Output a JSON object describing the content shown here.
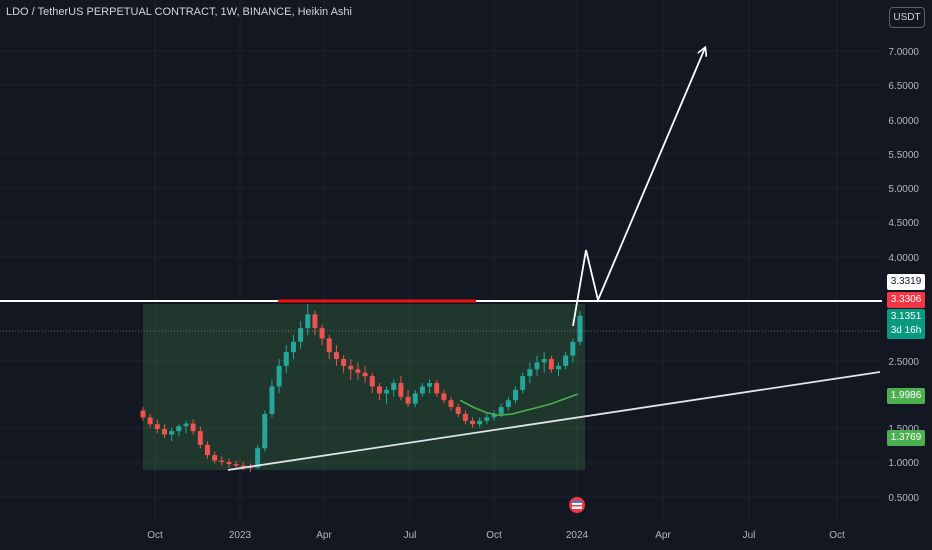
{
  "header": {
    "title": "LDO / TetherUS PERPETUAL CONTRACT, 1W, BINANCE, Heikin Ashi",
    "currency_button": "USDT"
  },
  "price_badges": [
    {
      "label": "3.3319",
      "bg": "#ffffff",
      "fg": "#131722"
    },
    {
      "label": "3.3306",
      "bg": "#f23645",
      "fg": "#ffffff"
    },
    {
      "label": "3.1351",
      "sub": "3d 16h",
      "bg": "#089981",
      "fg": "#ffffff"
    },
    {
      "label": "1.9986",
      "bg": "#4caf50",
      "fg": "#ffffff"
    },
    {
      "label": "1.3769",
      "bg": "#4caf50",
      "fg": "#ffffff"
    }
  ],
  "colors": {
    "up": "#26a69a",
    "down": "#ef5350",
    "zone": "#4caf50",
    "resistance": "#ffffff",
    "highlight": "#f21010",
    "ma": "#4caf50"
  },
  "chart_data": {
    "type": "candlestick",
    "y_ticks": [
      "0.5000",
      "1.0000",
      "1.5000",
      "2.5000",
      "4.0000",
      "4.5000",
      "5.0000",
      "5.5000",
      "6.0000",
      "6.5000",
      "7.0000"
    ],
    "x_ticks": [
      "Oct",
      "2023",
      "Apr",
      "Jul",
      "Oct",
      "2024",
      "Apr",
      "Jul",
      "Oct"
    ],
    "ohlc": [
      [
        1.75,
        1.8,
        1.6,
        1.65
      ],
      [
        1.65,
        1.7,
        1.5,
        1.55
      ],
      [
        1.55,
        1.62,
        1.42,
        1.48
      ],
      [
        1.48,
        1.55,
        1.35,
        1.4
      ],
      [
        1.4,
        1.5,
        1.3,
        1.45
      ],
      [
        1.45,
        1.55,
        1.38,
        1.52
      ],
      [
        1.52,
        1.6,
        1.42,
        1.56
      ],
      [
        1.56,
        1.62,
        1.4,
        1.45
      ],
      [
        1.45,
        1.52,
        1.2,
        1.25
      ],
      [
        1.25,
        1.3,
        1.05,
        1.1
      ],
      [
        1.1,
        1.15,
        0.98,
        1.02
      ],
      [
        1.02,
        1.08,
        0.95,
        1.0
      ],
      [
        1.0,
        1.05,
        0.92,
        0.97
      ],
      [
        0.97,
        1.02,
        0.9,
        0.95
      ],
      [
        0.95,
        1.0,
        0.88,
        0.93
      ],
      [
        0.93,
        0.98,
        0.85,
        0.92
      ],
      [
        0.92,
        1.25,
        0.9,
        1.2
      ],
      [
        1.2,
        1.75,
        1.15,
        1.7
      ],
      [
        1.7,
        2.2,
        1.65,
        2.1
      ],
      [
        2.1,
        2.5,
        2.0,
        2.4
      ],
      [
        2.4,
        2.7,
        2.3,
        2.6
      ],
      [
        2.6,
        2.85,
        2.5,
        2.75
      ],
      [
        2.75,
        3.05,
        2.65,
        2.95
      ],
      [
        2.95,
        3.3,
        2.85,
        3.15
      ],
      [
        3.15,
        3.2,
        2.85,
        2.95
      ],
      [
        2.95,
        3.0,
        2.7,
        2.8
      ],
      [
        2.8,
        2.85,
        2.5,
        2.6
      ],
      [
        2.6,
        2.7,
        2.4,
        2.5
      ],
      [
        2.5,
        2.55,
        2.3,
        2.4
      ],
      [
        2.4,
        2.5,
        2.2,
        2.35
      ],
      [
        2.35,
        2.45,
        2.2,
        2.3
      ],
      [
        2.3,
        2.4,
        2.15,
        2.25
      ],
      [
        2.25,
        2.3,
        2.0,
        2.1
      ],
      [
        2.1,
        2.15,
        1.9,
        2.0
      ],
      [
        2.0,
        2.1,
        1.85,
        2.05
      ],
      [
        2.05,
        2.2,
        1.95,
        2.15
      ],
      [
        2.15,
        2.25,
        1.9,
        1.95
      ],
      [
        1.95,
        2.05,
        1.8,
        1.85
      ],
      [
        1.85,
        2.05,
        1.8,
        2.0
      ],
      [
        2.0,
        2.15,
        1.95,
        2.1
      ],
      [
        2.1,
        2.2,
        2.0,
        2.15
      ],
      [
        2.15,
        2.2,
        1.95,
        2.0
      ],
      [
        2.0,
        2.05,
        1.85,
        1.9
      ],
      [
        1.9,
        1.95,
        1.75,
        1.8
      ],
      [
        1.8,
        1.85,
        1.65,
        1.7
      ],
      [
        1.7,
        1.75,
        1.55,
        1.6
      ],
      [
        1.6,
        1.65,
        1.5,
        1.55
      ],
      [
        1.55,
        1.65,
        1.5,
        1.6
      ],
      [
        1.6,
        1.7,
        1.55,
        1.65
      ],
      [
        1.65,
        1.75,
        1.6,
        1.7
      ],
      [
        1.7,
        1.85,
        1.65,
        1.8
      ],
      [
        1.8,
        1.95,
        1.75,
        1.9
      ],
      [
        1.9,
        2.1,
        1.85,
        2.05
      ],
      [
        2.05,
        2.3,
        2.0,
        2.25
      ],
      [
        2.25,
        2.45,
        2.15,
        2.35
      ],
      [
        2.35,
        2.55,
        2.25,
        2.45
      ],
      [
        2.45,
        2.6,
        2.3,
        2.5
      ],
      [
        2.5,
        2.55,
        2.3,
        2.35
      ],
      [
        2.35,
        2.45,
        2.25,
        2.4
      ],
      [
        2.4,
        2.6,
        2.35,
        2.55
      ],
      [
        2.55,
        2.8,
        2.45,
        2.75
      ],
      [
        2.75,
        3.2,
        2.7,
        3.13
      ]
    ],
    "moving_average": [
      1.9,
      1.8,
      1.72,
      1.68,
      1.7,
      1.75,
      1.8,
      1.85,
      1.92,
      1.99
    ]
  }
}
